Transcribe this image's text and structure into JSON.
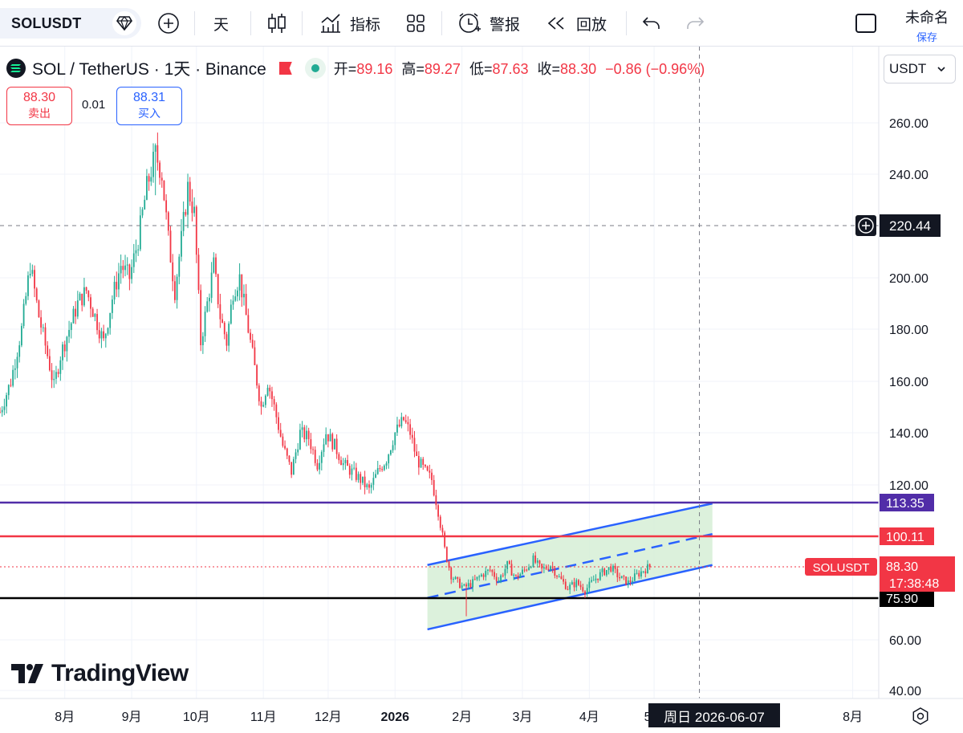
{
  "toolbar": {
    "symbol": "SOLUSDT",
    "interval": "天",
    "indicators_label": "指标",
    "alert_label": "警报",
    "replay_label": "回放",
    "layout_name": "未命名",
    "save_label": "保存"
  },
  "legend": {
    "title": "SOL / TetherUS · 1天 · Binance",
    "open_label": "开=",
    "open": "89.16",
    "high_label": "高=",
    "high": "89.27",
    "low_label": "低=",
    "low": "87.63",
    "close_label": "收=",
    "close": "88.30",
    "change": "−0.86 (−0.96%)"
  },
  "trade": {
    "sell_price": "88.30",
    "sell_label": "卖出",
    "spread": "0.01",
    "buy_price": "88.31",
    "buy_label": "买入"
  },
  "currency": "USDT",
  "brand": "TradingView",
  "crosshair": {
    "date_label": "周日  2026-06-07",
    "price_label": "220.44"
  },
  "colors": {
    "up": "#22ab94",
    "down": "#f23645",
    "channel": "#2962ff",
    "channel_fill": "#d6efd6",
    "purple": "#512da8",
    "red_line": "#f23645",
    "black_line": "#000000"
  },
  "chart_data": {
    "type": "candlestick",
    "y_ticks": [
      "260.00",
      "240.00",
      "200.00",
      "180.00",
      "160.00",
      "140.00",
      "120.00",
      "60.00",
      "40.00"
    ],
    "y_range": [
      35,
      275
    ],
    "x_ticks": [
      {
        "label": "8月",
        "day": 30
      },
      {
        "label": "9月",
        "day": 61
      },
      {
        "label": "10月",
        "day": 91
      },
      {
        "label": "11月",
        "day": 122
      },
      {
        "label": "12月",
        "day": 152
      },
      {
        "label": "2026",
        "day": 183,
        "bold": true
      },
      {
        "label": "2月",
        "day": 214
      },
      {
        "label": "3月",
        "day": 242
      },
      {
        "label": "4月",
        "day": 273
      },
      {
        "label": "5月",
        "day": 303
      },
      {
        "label": "8月",
        "day": 395
      }
    ],
    "price_path": [
      [
        0,
        148
      ],
      [
        5,
        160
      ],
      [
        10,
        180
      ],
      [
        14,
        205
      ],
      [
        18,
        185
      ],
      [
        22,
        170
      ],
      [
        25,
        158
      ],
      [
        28,
        170
      ],
      [
        32,
        180
      ],
      [
        36,
        190
      ],
      [
        40,
        195
      ],
      [
        44,
        185
      ],
      [
        48,
        175
      ],
      [
        52,
        192
      ],
      [
        56,
        205
      ],
      [
        60,
        200
      ],
      [
        64,
        215
      ],
      [
        68,
        235
      ],
      [
        72,
        248
      ],
      [
        75,
        240
      ],
      [
        78,
        215
      ],
      [
        81,
        195
      ],
      [
        84,
        215
      ],
      [
        87,
        235
      ],
      [
        90,
        225
      ],
      [
        93,
        175
      ],
      [
        96,
        190
      ],
      [
        99,
        205
      ],
      [
        102,
        185
      ],
      [
        105,
        175
      ],
      [
        108,
        195
      ],
      [
        111,
        200
      ],
      [
        114,
        185
      ],
      [
        118,
        165
      ],
      [
        121,
        150
      ],
      [
        124,
        160
      ],
      [
        127,
        150
      ],
      [
        131,
        135
      ],
      [
        135,
        125
      ],
      [
        139,
        140
      ],
      [
        143,
        138
      ],
      [
        147,
        128
      ],
      [
        151,
        140
      ],
      [
        155,
        135
      ],
      [
        159,
        128
      ],
      [
        163,
        125
      ],
      [
        167,
        122
      ],
      [
        171,
        118
      ],
      [
        175,
        125
      ],
      [
        179,
        130
      ],
      [
        183,
        140
      ],
      [
        187,
        145
      ],
      [
        190,
        140
      ],
      [
        193,
        130
      ],
      [
        197,
        125
      ],
      [
        200,
        122
      ],
      [
        203,
        110
      ],
      [
        206,
        95
      ],
      [
        209,
        85
      ],
      [
        212,
        82
      ],
      [
        215,
        80
      ],
      [
        219,
        82
      ],
      [
        223,
        85
      ],
      [
        227,
        87
      ],
      [
        231,
        83
      ],
      [
        235,
        89
      ],
      [
        239,
        84
      ],
      [
        243,
        87
      ],
      [
        247,
        91
      ],
      [
        251,
        87
      ],
      [
        255,
        89
      ],
      [
        259,
        84
      ],
      [
        263,
        80
      ],
      [
        267,
        82
      ],
      [
        271,
        79
      ],
      [
        275,
        83
      ],
      [
        279,
        86
      ],
      [
        283,
        88
      ],
      [
        287,
        84
      ],
      [
        291,
        82
      ],
      [
        295,
        85
      ],
      [
        298,
        87
      ],
      [
        301,
        88.3
      ]
    ],
    "forced_points": [
      {
        "day": 72,
        "high": 252,
        "low": 232
      },
      {
        "day": 216,
        "low": 69
      }
    ],
    "channel": {
      "upper": {
        "start": [
          198,
          89
        ],
        "end": [
          330,
          113
        ]
      },
      "mid": {
        "start": [
          198,
          76
        ],
        "end": [
          330,
          101
        ]
      },
      "lower": {
        "start": [
          198,
          64
        ],
        "end": [
          330,
          89
        ]
      },
      "fill_start_day": 198,
      "fill_end_day": 330
    },
    "horizontal_levels": [
      {
        "value": 113.35,
        "label": "113.35",
        "color": "#512da8"
      },
      {
        "value": 100.11,
        "label": "100.11",
        "color": "#f23645"
      },
      {
        "value": 75.9,
        "label": "75.90",
        "color": "#000000"
      }
    ],
    "last_price": {
      "value": 88.3,
      "label": "88.30",
      "countdown": "17:38:48",
      "symbol": "SOLUSDT"
    },
    "crosshair": {
      "day": 324,
      "price": 220.44
    }
  }
}
